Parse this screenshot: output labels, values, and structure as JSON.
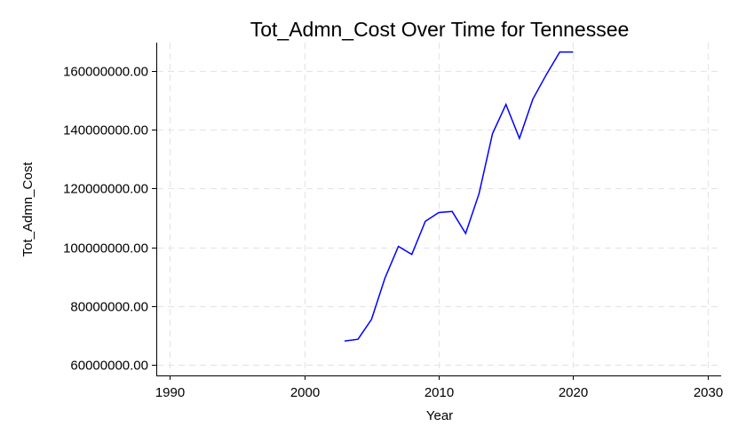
{
  "chart_data": {
    "type": "line",
    "title": "Tot_Admn_Cost Over Time for Tennessee",
    "xlabel": "Year",
    "ylabel": "Tot_Admn_Cost",
    "xlim": [
      1989,
      2031
    ],
    "ylim": [
      56500000,
      169500000
    ],
    "xticks": [
      1990,
      2000,
      2010,
      2020,
      2030
    ],
    "xtick_labels": [
      "1990",
      "2000",
      "2010",
      "2020",
      "2030"
    ],
    "yticks": [
      60000000,
      80000000,
      100000000,
      120000000,
      140000000,
      160000000
    ],
    "ytick_labels": [
      "60000000.00",
      "80000000.00",
      "100000000.00",
      "120000000.00",
      "140000000.00",
      "160000000.00"
    ],
    "grid": true,
    "line_color": "#0000ff",
    "grid_color": "#e6e6e6",
    "series": [
      {
        "x": [
          2003,
          2004,
          2005,
          2006,
          2007,
          2008,
          2009,
          2010,
          2011,
          2012,
          2013,
          2014,
          2015,
          2016,
          2017,
          2018,
          2019,
          2020
        ],
        "values": [
          68200000,
          68800000,
          75500000,
          89500000,
          100300000,
          97600000,
          108800000,
          111800000,
          112200000,
          104700000,
          118200000,
          138600000,
          148500000,
          137000000,
          150300000,
          158600000,
          166300000,
          166300000
        ]
      }
    ]
  }
}
